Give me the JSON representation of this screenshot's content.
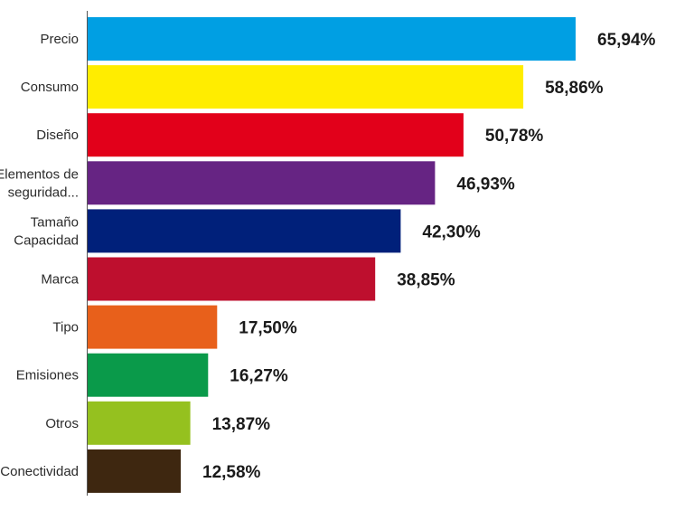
{
  "chart_data": {
    "type": "bar",
    "orientation": "horizontal",
    "categories": [
      [
        "Precio"
      ],
      [
        "Consumo"
      ],
      [
        "Diseño"
      ],
      [
        "Elementos de",
        "seguridad..."
      ],
      [
        "Tamaño",
        "Capacidad"
      ],
      [
        "Marca"
      ],
      [
        "Tipo"
      ],
      [
        "Emisiones"
      ],
      [
        "Otros"
      ],
      [
        "Conectividad"
      ]
    ],
    "values": [
      65.94,
      58.86,
      50.78,
      46.93,
      42.3,
      38.85,
      17.5,
      16.27,
      13.87,
      12.58
    ],
    "value_labels": [
      "65,94%",
      "58,86%",
      "50,78%",
      "46,93%",
      "42,30%",
      "38,85%",
      "17,50%",
      "16,27%",
      "13,87%",
      "12,58%"
    ],
    "colors": [
      "#009fe3",
      "#ffed00",
      "#e2001a",
      "#662483",
      "#00207a",
      "#be0f2e",
      "#e8601b",
      "#0a9a4a",
      "#95c11f",
      "#3e2710"
    ],
    "title": "",
    "xlabel": "",
    "ylabel": "",
    "grid": false,
    "legend": "none"
  }
}
